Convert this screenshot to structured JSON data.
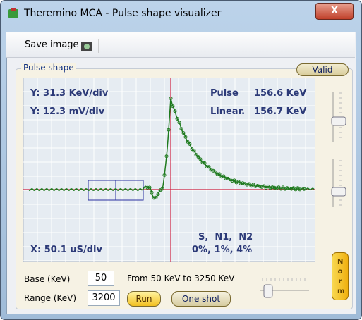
{
  "window": {
    "title": "Theremino MCA - Pulse shape visualizer",
    "close": "X"
  },
  "toolbar": {
    "save": "Save image"
  },
  "group": {
    "title": "Pulse shape",
    "valid": "Valid"
  },
  "plot": {
    "y_div_energy": "Y: 31.3 KeV/div",
    "y_div_voltage": "Y: 12.3 mV/div",
    "pulse_label": "Pulse",
    "pulse_value": "156.6 KeV",
    "linear_label": "Linear.",
    "linear_value": "156.7 KeV",
    "x_div": "X: 50.1 uS/div",
    "noise_header": "S,  N1,  N2",
    "noise_values": "0%, 1%, 4%"
  },
  "controls": {
    "base_label": "Base (KeV)",
    "base_value": "50",
    "range_label": "Range (KeV)",
    "range_value": "3200",
    "range_text": "From 50 KeV to 3250 KeV",
    "run": "Run",
    "one_shot": "One shot",
    "norm": "Norm"
  }
}
